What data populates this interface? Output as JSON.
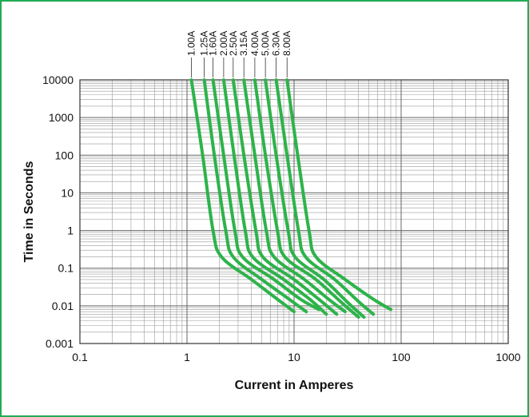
{
  "chart_data": {
    "type": "line",
    "title": "",
    "xlabel": "Current in Amperes",
    "ylabel": "Time in Seconds",
    "xscale": "log",
    "yscale": "log",
    "xlim": [
      0.1,
      1000
    ],
    "ylim": [
      0.001,
      10000
    ],
    "x_ticks": [
      "0.1",
      "1",
      "10",
      "100",
      "1000"
    ],
    "y_ticks": [
      "0.001",
      "0.01",
      "0.1",
      "1",
      "10",
      "100",
      "1000",
      "10000"
    ],
    "grid": true,
    "legend": "top, labels above each curve",
    "colors": {
      "curve": "#2db34a",
      "frame": "#22aa55",
      "grid": "#9a9a9a"
    },
    "series": [
      {
        "name": "1.00A",
        "points": [
          [
            1.1,
            10000
          ],
          [
            1.4,
            100
          ],
          [
            1.75,
            1
          ],
          [
            2.1,
            0.2
          ],
          [
            4.0,
            0.05
          ],
          [
            7.0,
            0.015
          ],
          [
            10.0,
            0.007
          ]
        ]
      },
      {
        "name": "1.25A",
        "points": [
          [
            1.45,
            10000
          ],
          [
            1.8,
            100
          ],
          [
            2.3,
            1
          ],
          [
            2.7,
            0.2
          ],
          [
            5.0,
            0.05
          ],
          [
            9.0,
            0.015
          ],
          [
            13.0,
            0.007
          ]
        ]
      },
      {
        "name": "1.60A",
        "points": [
          [
            1.75,
            10000
          ],
          [
            2.2,
            100
          ],
          [
            2.8,
            1
          ],
          [
            3.3,
            0.2
          ],
          [
            6.5,
            0.05
          ],
          [
            11.5,
            0.015
          ],
          [
            17.0,
            0.008
          ]
        ]
      },
      {
        "name": "2.00A",
        "points": [
          [
            2.2,
            10000
          ],
          [
            2.75,
            100
          ],
          [
            3.5,
            1
          ],
          [
            4.1,
            0.2
          ],
          [
            8.0,
            0.05
          ],
          [
            14.0,
            0.015
          ],
          [
            20.0,
            0.006
          ]
        ]
      },
      {
        "name": "2.50A",
        "points": [
          [
            2.7,
            10000
          ],
          [
            3.4,
            100
          ],
          [
            4.4,
            1
          ],
          [
            5.1,
            0.2
          ],
          [
            10.0,
            0.05
          ],
          [
            17.0,
            0.015
          ],
          [
            25.0,
            0.006
          ]
        ]
      },
      {
        "name": "3.15A",
        "points": [
          [
            3.4,
            10000
          ],
          [
            4.3,
            100
          ],
          [
            5.5,
            1
          ],
          [
            6.5,
            0.2
          ],
          [
            12.5,
            0.05
          ],
          [
            21.0,
            0.015
          ],
          [
            30.0,
            0.007
          ]
        ]
      },
      {
        "name": "4.00A",
        "points": [
          [
            4.3,
            10000
          ],
          [
            5.4,
            100
          ],
          [
            7.0,
            1
          ],
          [
            8.2,
            0.2
          ],
          [
            16.0,
            0.05
          ],
          [
            28.0,
            0.012
          ],
          [
            40.0,
            0.005
          ]
        ]
      },
      {
        "name": "5.00A",
        "points": [
          [
            5.4,
            10000
          ],
          [
            6.8,
            100
          ],
          [
            8.8,
            1
          ],
          [
            10.2,
            0.2
          ],
          [
            19.0,
            0.05
          ],
          [
            32.0,
            0.012
          ],
          [
            45.0,
            0.005
          ]
        ]
      },
      {
        "name": "6.30A",
        "points": [
          [
            6.8,
            10000
          ],
          [
            8.6,
            100
          ],
          [
            11.0,
            1
          ],
          [
            12.8,
            0.2
          ],
          [
            24.0,
            0.05
          ],
          [
            40.0,
            0.013
          ],
          [
            55.0,
            0.006
          ]
        ]
      },
      {
        "name": "8.00A",
        "points": [
          [
            8.6,
            10000
          ],
          [
            10.8,
            100
          ],
          [
            13.8,
            1
          ],
          [
            16.0,
            0.2
          ],
          [
            30.0,
            0.05
          ],
          [
            55.0,
            0.015
          ],
          [
            80.0,
            0.008
          ]
        ]
      }
    ]
  }
}
